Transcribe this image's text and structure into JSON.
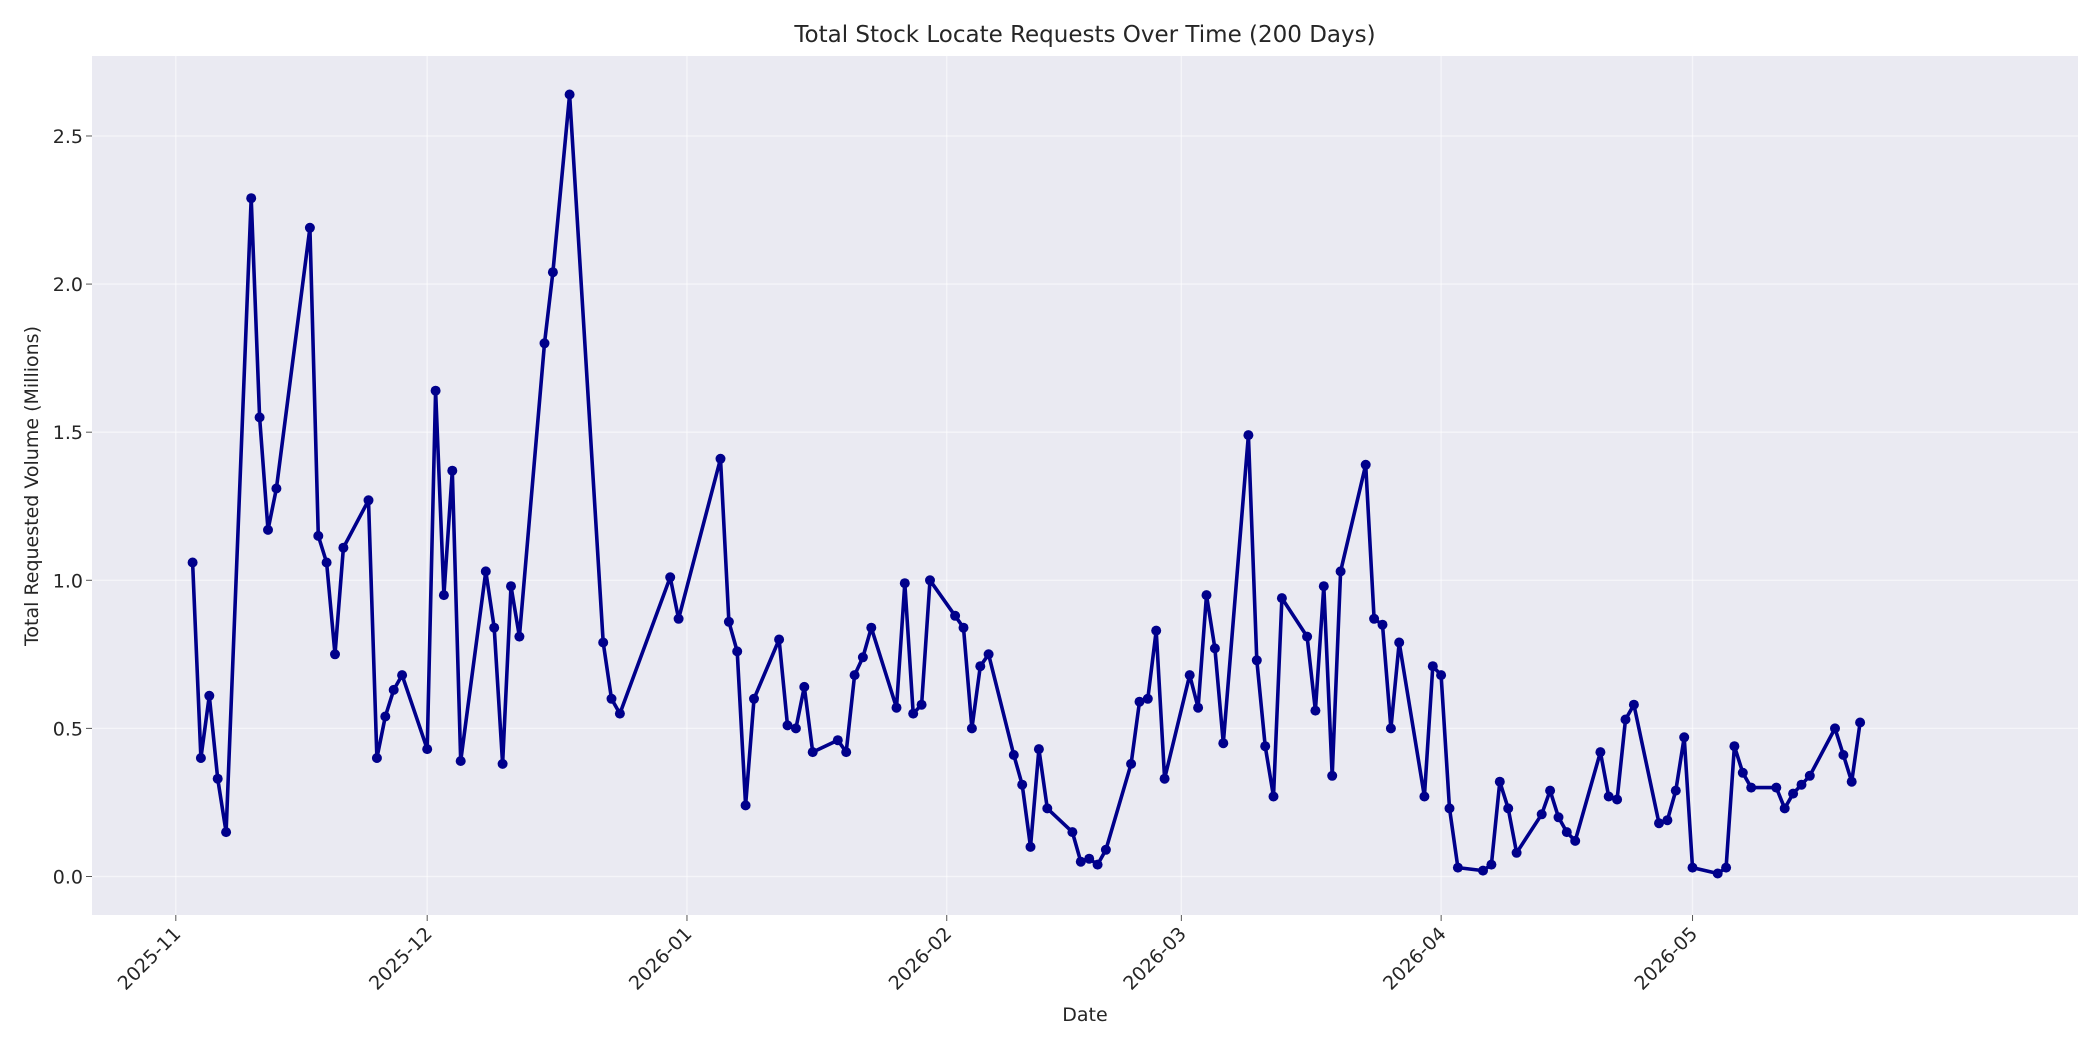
{
  "chart_data": {
    "type": "line",
    "title": "Total Stock Locate Requests Over Time (200 Days)",
    "xlabel": "Date",
    "ylabel": "Total Requested Volume (Millions)",
    "x_ticks": [
      "2025-11",
      "2025-12",
      "2026-01",
      "2026-02",
      "2026-03",
      "2026-04",
      "2026-05"
    ],
    "x_tick_dates": [
      "2025-11-01",
      "2025-12-01",
      "2026-01-01",
      "2026-02-01",
      "2026-03-01",
      "2026-04-01",
      "2026-05-01"
    ],
    "y_ticks": [
      0.0,
      0.5,
      1.0,
      1.5,
      2.0,
      2.5
    ],
    "y_tick_labels": [
      "0.0",
      "0.5",
      "1.0",
      "1.5",
      "2.0",
      "2.5"
    ],
    "xlim": [
      "2025-10-22",
      "2026-06-16"
    ],
    "ylim": [
      -0.13,
      2.77
    ],
    "grid": true,
    "background_color": "#eaeaf2",
    "grid_color": "#ffffff",
    "series": [
      {
        "color": "#00008b",
        "marker": "circle",
        "x": [
          "2025-11-03",
          "2025-11-04",
          "2025-11-05",
          "2025-11-06",
          "2025-11-07",
          "2025-11-10",
          "2025-11-11",
          "2025-11-12",
          "2025-11-13",
          "2025-11-17",
          "2025-11-18",
          "2025-11-19",
          "2025-11-20",
          "2025-11-21",
          "2025-11-24",
          "2025-11-25",
          "2025-11-26",
          "2025-11-27",
          "2025-11-28",
          "2025-12-01",
          "2025-12-02",
          "2025-12-03",
          "2025-12-04",
          "2025-12-05",
          "2025-12-08",
          "2025-12-09",
          "2025-12-10",
          "2025-12-11",
          "2025-12-12",
          "2025-12-15",
          "2025-12-16",
          "2025-12-18",
          "2025-12-22",
          "2025-12-23",
          "2025-12-24",
          "2025-12-30",
          "2025-12-31",
          "2026-01-05",
          "2026-01-06",
          "2026-01-07",
          "2026-01-08",
          "2026-01-09",
          "2026-01-12",
          "2026-01-13",
          "2026-01-14",
          "2026-01-15",
          "2026-01-16",
          "2026-01-19",
          "2026-01-20",
          "2026-01-21",
          "2026-01-22",
          "2026-01-23",
          "2026-01-26",
          "2026-01-27",
          "2026-01-28",
          "2026-01-29",
          "2026-01-30",
          "2026-02-02",
          "2026-02-03",
          "2026-02-04",
          "2026-02-05",
          "2026-02-06",
          "2026-02-09",
          "2026-02-10",
          "2026-02-11",
          "2026-02-12",
          "2026-02-13",
          "2026-02-16",
          "2026-02-17",
          "2026-02-18",
          "2026-02-19",
          "2026-02-20",
          "2026-02-23",
          "2026-02-24",
          "2026-02-25",
          "2026-02-26",
          "2026-02-27",
          "2026-03-02",
          "2026-03-03",
          "2026-03-04",
          "2026-03-05",
          "2026-03-06",
          "2026-03-09",
          "2026-03-10",
          "2026-03-11",
          "2026-03-12",
          "2026-03-13",
          "2026-03-16",
          "2026-03-17",
          "2026-03-18",
          "2026-03-19",
          "2026-03-20",
          "2026-03-23",
          "2026-03-24",
          "2026-03-25",
          "2026-03-26",
          "2026-03-27",
          "2026-03-30",
          "2026-03-31",
          "2026-04-01",
          "2026-04-02",
          "2026-04-03",
          "2026-04-06",
          "2026-04-07",
          "2026-04-08",
          "2026-04-09",
          "2026-04-10",
          "2026-04-13",
          "2026-04-14",
          "2026-04-15",
          "2026-04-16",
          "2026-04-17",
          "2026-04-20",
          "2026-04-21",
          "2026-04-22",
          "2026-04-23",
          "2026-04-24",
          "2026-04-27",
          "2026-04-28",
          "2026-04-29",
          "2026-04-30",
          "2026-05-01",
          "2026-05-04",
          "2026-05-05",
          "2026-05-06",
          "2026-05-07",
          "2026-05-08",
          "2026-05-11",
          "2026-05-12",
          "2026-05-13",
          "2026-05-14",
          "2026-05-15",
          "2026-05-18",
          "2026-05-19",
          "2026-05-20",
          "2026-05-21"
        ],
        "values": [
          1.06,
          0.4,
          0.61,
          0.33,
          0.15,
          2.29,
          1.55,
          1.17,
          1.31,
          2.19,
          1.15,
          1.06,
          0.75,
          1.11,
          1.27,
          0.4,
          0.54,
          0.63,
          0.68,
          0.43,
          1.64,
          0.95,
          1.37,
          0.39,
          1.03,
          0.84,
          0.38,
          0.98,
          0.81,
          1.8,
          2.04,
          2.64,
          0.79,
          0.6,
          0.55,
          1.01,
          0.87,
          1.41,
          0.86,
          0.76,
          0.24,
          0.6,
          0.8,
          0.51,
          0.5,
          0.64,
          0.42,
          0.46,
          0.42,
          0.68,
          0.74,
          0.84,
          0.57,
          0.99,
          0.55,
          0.58,
          1.0,
          0.88,
          0.84,
          0.5,
          0.71,
          0.75,
          0.41,
          0.31,
          0.1,
          0.43,
          0.23,
          0.15,
          0.05,
          0.06,
          0.04,
          0.09,
          0.38,
          0.59,
          0.6,
          0.83,
          0.33,
          0.68,
          0.57,
          0.95,
          0.77,
          0.45,
          1.49,
          0.73,
          0.44,
          0.27,
          0.94,
          0.81,
          0.56,
          0.98,
          0.34,
          1.03,
          1.39,
          0.87,
          0.85,
          0.5,
          0.79,
          0.27,
          0.71,
          0.68,
          0.23,
          0.03,
          0.02,
          0.04,
          0.32,
          0.23,
          0.08,
          0.21,
          0.29,
          0.2,
          0.15,
          0.12,
          0.42,
          0.27,
          0.26,
          0.53,
          0.58,
          0.18,
          0.19,
          0.29,
          0.47,
          0.03,
          0.01,
          0.03,
          0.44,
          0.35,
          0.3,
          0.3,
          0.23,
          0.28,
          0.31,
          0.34,
          0.5,
          0.41,
          0.32,
          0.52
        ]
      }
    ]
  }
}
